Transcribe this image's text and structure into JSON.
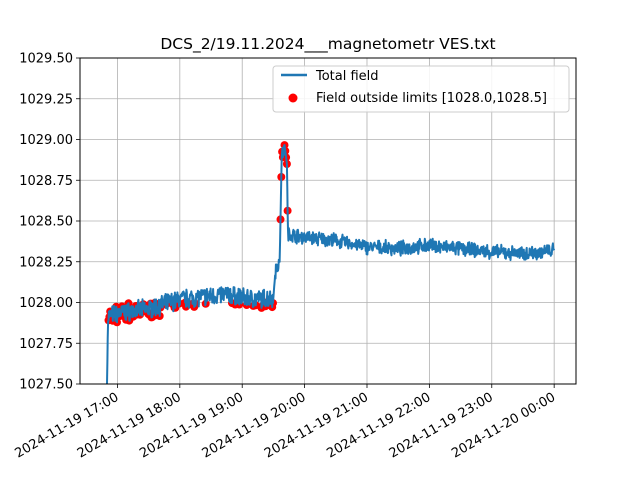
{
  "chart_data": {
    "type": "line",
    "title": "DCS_2/19.11.2024___magnetometr VES.txt",
    "xlabel": "",
    "ylabel": "",
    "ylim": [
      1027.5,
      1029.5
    ],
    "yticks": [
      "1027.50",
      "1027.75",
      "1028.00",
      "1028.25",
      "1028.50",
      "1028.75",
      "1029.00",
      "1029.25",
      "1029.50"
    ],
    "xlim_hours": [
      16.4,
      24.35
    ],
    "xticks": [
      {
        "hour": 17,
        "label": "2024-11-19 17:00"
      },
      {
        "hour": 18,
        "label": "2024-11-19 18:00"
      },
      {
        "hour": 19,
        "label": "2024-11-19 19:00"
      },
      {
        "hour": 20,
        "label": "2024-11-19 20:00"
      },
      {
        "hour": 21,
        "label": "2024-11-19 21:00"
      },
      {
        "hour": 22,
        "label": "2024-11-19 22:00"
      },
      {
        "hour": 23,
        "label": "2024-11-19 23:00"
      },
      {
        "hour": 24,
        "label": "2024-11-20 00:00"
      }
    ],
    "grid": true,
    "legend_position": "top-right",
    "series": [
      {
        "name": "Total field",
        "color": "#1f77b4",
        "points": [
          [
            "2024-11-19 16:50",
            1027.5
          ],
          [
            "2024-11-19 16:51",
            1027.92
          ],
          [
            "2024-11-19 17:00",
            1027.93
          ],
          [
            "2024-11-19 17:15",
            1027.95
          ],
          [
            "2024-11-19 17:30",
            1027.96
          ],
          [
            "2024-11-19 17:45",
            1027.99
          ],
          [
            "2024-11-19 18:00",
            1028.02
          ],
          [
            "2024-11-19 18:15",
            1028.03
          ],
          [
            "2024-11-19 18:30",
            1028.04
          ],
          [
            "2024-11-19 18:45",
            1028.05
          ],
          [
            "2024-11-19 19:00",
            1028.03
          ],
          [
            "2024-11-19 19:15",
            1028.02
          ],
          [
            "2024-11-19 19:30",
            1028.03
          ],
          [
            "2024-11-19 19:32",
            1028.2
          ],
          [
            "2024-11-19 19:36",
            1028.25
          ],
          [
            "2024-11-19 19:38",
            1028.9
          ],
          [
            "2024-11-19 19:41",
            1028.95
          ],
          [
            "2024-11-19 19:43",
            1028.85
          ],
          [
            "2024-11-19 19:44",
            1028.42
          ],
          [
            "2024-11-19 20:00",
            1028.4
          ],
          [
            "2024-11-19 20:30",
            1028.38
          ],
          [
            "2024-11-19 21:00",
            1028.34
          ],
          [
            "2024-11-19 21:30",
            1028.33
          ],
          [
            "2024-11-19 22:00",
            1028.35
          ],
          [
            "2024-11-19 22:30",
            1028.33
          ],
          [
            "2024-11-19 23:00",
            1028.31
          ],
          [
            "2024-11-19 23:30",
            1028.3
          ],
          [
            "2024-11-20 00:00",
            1028.32
          ]
        ]
      },
      {
        "name": "Field outside limits [1028.0,1028.5]",
        "color": "#ff0000",
        "marker": "circle",
        "description": "all samples below 1028.0 between 16:51 and 19:33, plus all samples above 1028.5 between 19:38 and 19:43"
      }
    ]
  }
}
